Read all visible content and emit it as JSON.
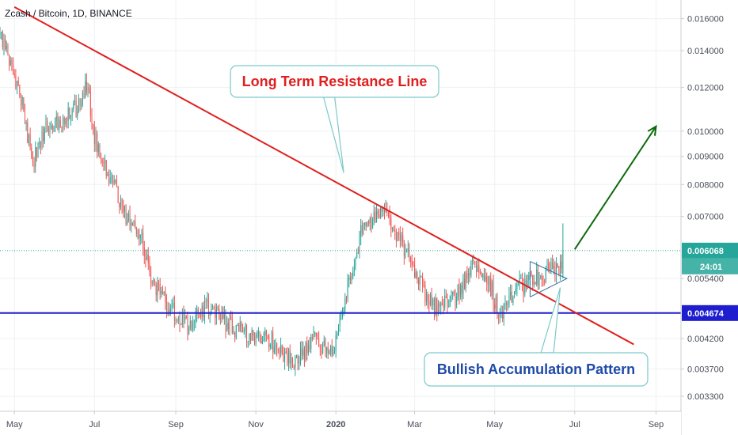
{
  "chart_data": {
    "type": "candlestick",
    "title": "Zcash / Bitcoin, 1D, BINANCE",
    "y_scale": "log",
    "y_range": [
      0.0031,
      0.0173
    ],
    "x_start": "2019-04-20",
    "x_end": "2020-09-20",
    "x_ticks": [
      {
        "date": "2019-05-01",
        "label": "May"
      },
      {
        "date": "2019-07-01",
        "label": "Jul"
      },
      {
        "date": "2019-09-01",
        "label": "Sep"
      },
      {
        "date": "2019-11-01",
        "label": "Nov"
      },
      {
        "date": "2020-01-01",
        "label": "2020"
      },
      {
        "date": "2020-03-01",
        "label": "Mar"
      },
      {
        "date": "2020-05-01",
        "label": "May"
      },
      {
        "date": "2020-07-01",
        "label": "Jul"
      },
      {
        "date": "2020-09-01",
        "label": "Sep"
      }
    ],
    "y_ticks": [
      "0.016000",
      "0.014000",
      "0.012000",
      "0.010000",
      "0.009000",
      "0.008000",
      "0.007000",
      "0.005400",
      "0.004200",
      "0.003700",
      "0.003300"
    ],
    "y_tick_values": [
      0.016,
      0.014,
      0.012,
      0.01,
      0.009,
      0.008,
      0.007,
      0.0054,
      0.0042,
      0.0037,
      0.0033
    ],
    "price_path": [
      {
        "date": "2019-04-20",
        "close": 0.015
      },
      {
        "date": "2019-05-05",
        "close": 0.0118
      },
      {
        "date": "2019-05-15",
        "close": 0.0088
      },
      {
        "date": "2019-05-25",
        "close": 0.0102
      },
      {
        "date": "2019-06-15",
        "close": 0.0108
      },
      {
        "date": "2019-06-25",
        "close": 0.0122
      },
      {
        "date": "2019-07-01",
        "close": 0.0098
      },
      {
        "date": "2019-07-15",
        "close": 0.008
      },
      {
        "date": "2019-07-25",
        "close": 0.007
      },
      {
        "date": "2019-08-05",
        "close": 0.0066
      },
      {
        "date": "2019-08-15",
        "close": 0.0052
      },
      {
        "date": "2019-08-25",
        "close": 0.0049
      },
      {
        "date": "2019-09-10",
        "close": 0.0044
      },
      {
        "date": "2019-09-25",
        "close": 0.0048
      },
      {
        "date": "2019-10-15",
        "close": 0.0044
      },
      {
        "date": "2019-11-10",
        "close": 0.0042
      },
      {
        "date": "2019-12-01",
        "close": 0.0038
      },
      {
        "date": "2019-12-15",
        "close": 0.0042
      },
      {
        "date": "2019-12-30",
        "close": 0.004
      },
      {
        "date": "2020-01-10",
        "close": 0.0052
      },
      {
        "date": "2020-01-20",
        "close": 0.0065
      },
      {
        "date": "2020-02-05",
        "close": 0.0072
      },
      {
        "date": "2020-02-20",
        "close": 0.0063
      },
      {
        "date": "2020-03-05",
        "close": 0.0053
      },
      {
        "date": "2020-03-15",
        "close": 0.0048
      },
      {
        "date": "2020-04-01",
        "close": 0.005
      },
      {
        "date": "2020-04-15",
        "close": 0.0058
      },
      {
        "date": "2020-04-25",
        "close": 0.0055
      },
      {
        "date": "2020-05-05",
        "close": 0.0046
      },
      {
        "date": "2020-05-20",
        "close": 0.0052
      },
      {
        "date": "2020-06-05",
        "close": 0.0055
      },
      {
        "date": "2020-06-20",
        "close": 0.0056
      }
    ],
    "last_candle": {
      "date": "2020-06-22",
      "open": 0.0055,
      "high": 0.0068,
      "low": 0.0054,
      "close": 0.00607
    },
    "seed": 7,
    "current_price": {
      "label": "0.006068",
      "value": 0.006068,
      "countdown": "24:01",
      "color": "#26a69a"
    },
    "support_line": {
      "label": "0.004674",
      "value": 0.004674,
      "color": "#1e1ecf"
    },
    "resistance_line": {
      "color": "#e01f1f",
      "start": {
        "date": "2019-05-01",
        "price": 0.0168
      },
      "end": {
        "date": "2020-08-15",
        "price": 0.0041
      }
    },
    "triangle": {
      "color": "#2a6a9a",
      "start_date": "2020-05-28",
      "end_date": "2020-06-25",
      "top_start": 0.0058,
      "bottom_start": 0.005,
      "apex": 0.0054
    },
    "forecast_arrow": {
      "color": "#0b6b0b",
      "start": {
        "date": "2020-07-01",
        "price": 0.0061
      },
      "end": {
        "date": "2020-09-01",
        "price": 0.0102
      }
    },
    "annotations": [
      {
        "text": "Long Term Resistance Line",
        "color": "#e01f1f",
        "pointer": {
          "date": "2020-01-07",
          "price": 0.0084
        }
      },
      {
        "text": "Bullish Accumulation Pattern",
        "color": "#1e4aa8",
        "pointer": {
          "date": "2020-06-20",
          "price": 0.0052
        }
      }
    ]
  }
}
